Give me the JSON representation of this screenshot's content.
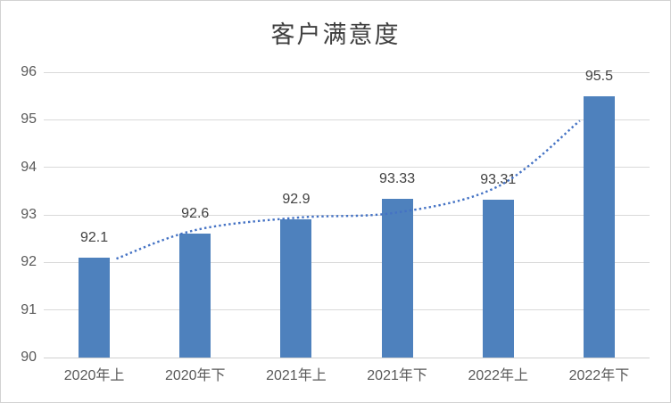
{
  "chart_data": {
    "type": "bar",
    "title": "客户满意度",
    "categories": [
      "2020年上",
      "2020年下",
      "2021年上",
      "2021年下",
      "2022年上",
      "2022年下"
    ],
    "values": [
      92.1,
      92.6,
      92.9,
      93.33,
      93.31,
      95.5
    ],
    "data_labels": [
      "92.1",
      "92.6",
      "92.9",
      "93.33",
      "93.31",
      "95.5"
    ],
    "xlabel": "",
    "ylabel": "",
    "ylim": [
      90,
      96
    ],
    "ytick_step": 1,
    "yticks": [
      "90",
      "91",
      "92",
      "93",
      "94",
      "95",
      "96"
    ],
    "grid": true,
    "legend": "none",
    "bar_color": "#4E81BD",
    "gridline_color": "#d9d9d9",
    "tick_label_color": "#595959",
    "data_label_color": "#404040",
    "title_color": "#3f3f3f",
    "trendline": {
      "style": "dotted",
      "color": "#4472C4",
      "points": [
        {
          "x": 0.22,
          "y": 92.08
        },
        {
          "x": 1.0,
          "y": 92.68
        },
        {
          "x": 2.0,
          "y": 92.94
        },
        {
          "x": 3.0,
          "y": 93.05
        },
        {
          "x": 4.0,
          "y": 93.6
        },
        {
          "x": 4.81,
          "y": 94.98
        }
      ]
    }
  }
}
